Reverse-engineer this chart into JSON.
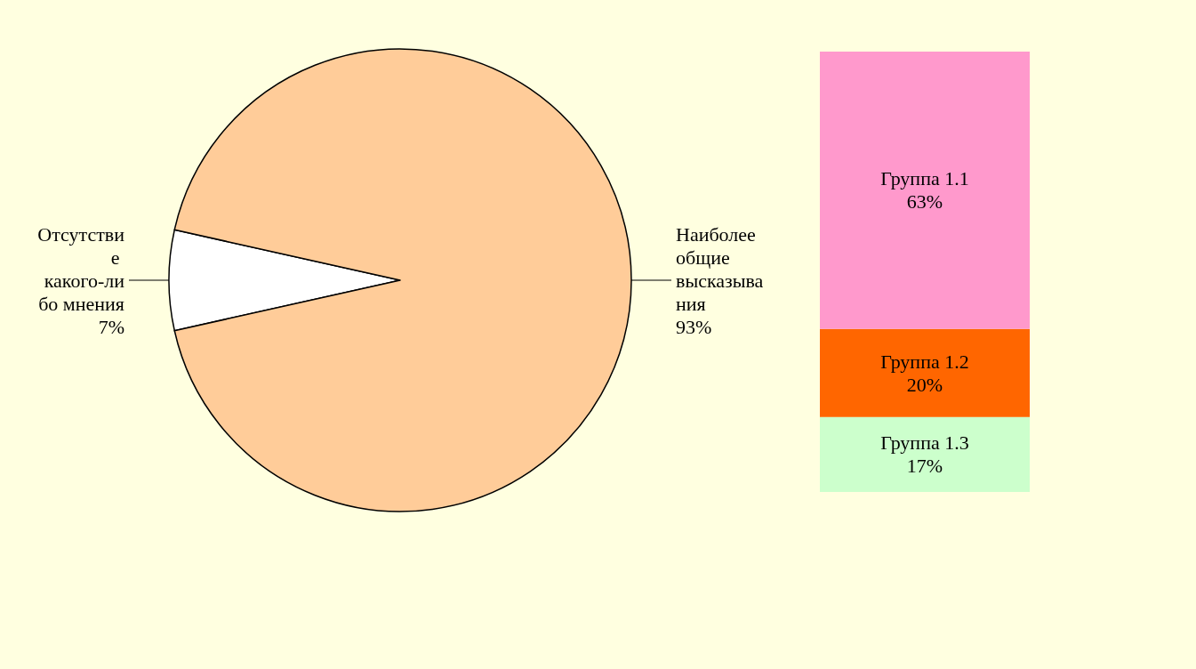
{
  "chart_data": [
    {
      "type": "pie",
      "categories": [
        "Отсутствие какого-либо мнения",
        "Наиболее общие высказывания"
      ],
      "values": [
        7,
        93
      ],
      "colors": [
        "#ffffff",
        "#ffcc99"
      ],
      "value_labels": [
        "7%",
        "93%"
      ]
    },
    {
      "type": "bar",
      "stacked": true,
      "categories": [
        null
      ],
      "series": [
        {
          "name": "Группа 1.3",
          "color": "#ccffcc",
          "values": [
            17
          ],
          "value_labels": [
            "17%"
          ]
        },
        {
          "name": "Группа 1.2",
          "color": "#ff6600",
          "values": [
            20
          ],
          "value_labels": [
            "20%"
          ]
        },
        {
          "name": "Группа 1.1",
          "color": "#ff99cc",
          "values": [
            63
          ],
          "value_labels": [
            "63%"
          ]
        }
      ]
    }
  ]
}
